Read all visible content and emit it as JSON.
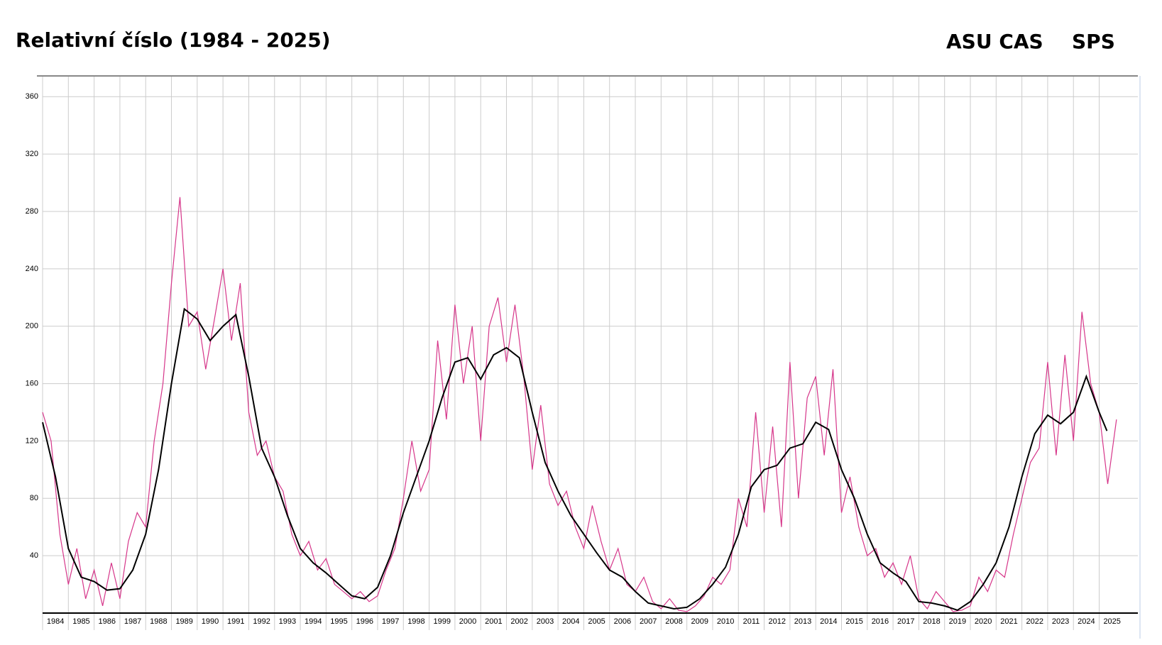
{
  "chart_data": {
    "type": "line",
    "title": "Relativní číslo (1984 - 2025)",
    "source": "ASU CAS",
    "subtitle": "SPS",
    "xlim": [
      1984,
      2026.5
    ],
    "xticks": [
      1984,
      1985,
      1986,
      1987,
      1988,
      1989,
      1990,
      1991,
      1992,
      1993,
      1994,
      1995,
      1996,
      1997,
      1998,
      1999,
      2000,
      2001,
      2002,
      2003,
      2004,
      2005,
      2006,
      2007,
      2008,
      2009,
      2010,
      2011,
      2012,
      2013,
      2014,
      2015,
      2016,
      2017,
      2018,
      2019,
      2020,
      2021,
      2022,
      2023,
      2024,
      2025
    ],
    "ylim": [
      0,
      374
    ],
    "yticks": [
      40,
      80,
      120,
      160,
      200,
      240,
      280,
      320,
      360
    ],
    "grid": true,
    "series": [
      {
        "color": "#d6368a",
        "x": [
          1984,
          1984.33,
          1984.67,
          1985,
          1985.33,
          1985.67,
          1986,
          1986.33,
          1986.67,
          1987,
          1987.33,
          1987.67,
          1988,
          1988.33,
          1988.67,
          1989,
          1989.33,
          1989.67,
          1990,
          1990.33,
          1990.67,
          1991,
          1991.33,
          1991.67,
          1992,
          1992.33,
          1992.67,
          1993,
          1993.33,
          1993.67,
          1994,
          1994.33,
          1994.67,
          1995,
          1995.33,
          1995.67,
          1996,
          1996.33,
          1996.67,
          1997,
          1997.33,
          1997.67,
          1998,
          1998.33,
          1998.67,
          1999,
          1999.33,
          1999.67,
          2000,
          2000.33,
          2000.67,
          2001,
          2001.33,
          2001.67,
          2002,
          2002.33,
          2002.67,
          2003,
          2003.33,
          2003.67,
          2004,
          2004.33,
          2004.67,
          2005,
          2005.33,
          2005.67,
          2006,
          2006.33,
          2006.67,
          2007,
          2007.33,
          2007.67,
          2008,
          2008.33,
          2008.67,
          2009,
          2009.33,
          2009.67,
          2010,
          2010.33,
          2010.67,
          2011,
          2011.33,
          2011.67,
          2012,
          2012.33,
          2012.67,
          2013,
          2013.33,
          2013.67,
          2014,
          2014.33,
          2014.67,
          2015,
          2015.33,
          2015.67,
          2016,
          2016.33,
          2016.67,
          2017,
          2017.33,
          2017.67,
          2018,
          2018.33,
          2018.67,
          2019,
          2019.33,
          2019.67,
          2020,
          2020.33,
          2020.67,
          2021,
          2021.33,
          2021.67,
          2022,
          2022.33,
          2022.67,
          2023,
          2023.33,
          2023.67,
          2024,
          2024.33,
          2024.67,
          2025,
          2025.33,
          2025.67
        ],
        "values": [
          140,
          120,
          55,
          20,
          45,
          10,
          30,
          5,
          35,
          10,
          50,
          70,
          60,
          120,
          160,
          230,
          290,
          200,
          210,
          170,
          205,
          240,
          190,
          230,
          140,
          110,
          120,
          95,
          85,
          55,
          40,
          50,
          30,
          38,
          20,
          15,
          10,
          15,
          8,
          12,
          30,
          45,
          80,
          120,
          85,
          100,
          190,
          135,
          215,
          160,
          200,
          120,
          200,
          220,
          175,
          215,
          165,
          100,
          145,
          90,
          75,
          85,
          60,
          45,
          75,
          50,
          30,
          45,
          20,
          15,
          25,
          8,
          3,
          10,
          2,
          1,
          5,
          12,
          25,
          20,
          30,
          80,
          60,
          140,
          70,
          130,
          60,
          175,
          80,
          150,
          165,
          110,
          170,
          70,
          95,
          60,
          40,
          45,
          25,
          35,
          20,
          40,
          10,
          3,
          15,
          8,
          1,
          2,
          5,
          25,
          15,
          30,
          25,
          55,
          80,
          105,
          115,
          175,
          110,
          180,
          120,
          210,
          160,
          140,
          90,
          135
        ]
      },
      {
        "color": "#000000",
        "x": [
          1984,
          1984.5,
          1985,
          1985.5,
          1986,
          1986.5,
          1987,
          1987.5,
          1988,
          1988.5,
          1989,
          1989.5,
          1990,
          1990.5,
          1991,
          1991.5,
          1992,
          1992.5,
          1993,
          1993.5,
          1994,
          1994.5,
          1995,
          1995.5,
          1996,
          1996.5,
          1997,
          1997.5,
          1998,
          1998.5,
          1999,
          1999.5,
          2000,
          2000.5,
          2001,
          2001.5,
          2002,
          2002.5,
          2003,
          2003.5,
          2004,
          2004.5,
          2005,
          2005.5,
          2006,
          2006.5,
          2007,
          2007.5,
          2008,
          2008.5,
          2009,
          2009.5,
          2010,
          2010.5,
          2011,
          2011.5,
          2012,
          2012.5,
          2013,
          2013.5,
          2014,
          2014.5,
          2015,
          2015.5,
          2016,
          2016.5,
          2017,
          2017.5,
          2018,
          2018.5,
          2019,
          2019.5,
          2020,
          2020.5,
          2021,
          2021.5,
          2022,
          2022.5,
          2023,
          2023.5,
          2024,
          2024.5,
          2025,
          2025.3
        ],
        "values": [
          133,
          95,
          45,
          25,
          22,
          16,
          17,
          30,
          55,
          100,
          160,
          212,
          205,
          190,
          200,
          208,
          165,
          115,
          95,
          68,
          45,
          35,
          28,
          20,
          12,
          10,
          18,
          40,
          70,
          95,
          120,
          150,
          175,
          178,
          163,
          180,
          185,
          178,
          140,
          105,
          85,
          68,
          55,
          42,
          30,
          25,
          15,
          7,
          5,
          3,
          4,
          10,
          20,
          32,
          55,
          88,
          100,
          103,
          115,
          118,
          133,
          128,
          100,
          80,
          55,
          35,
          28,
          22,
          8,
          7,
          5,
          2,
          8,
          20,
          35,
          60,
          95,
          125,
          138,
          132,
          140,
          165,
          140,
          127
        ]
      }
    ]
  }
}
